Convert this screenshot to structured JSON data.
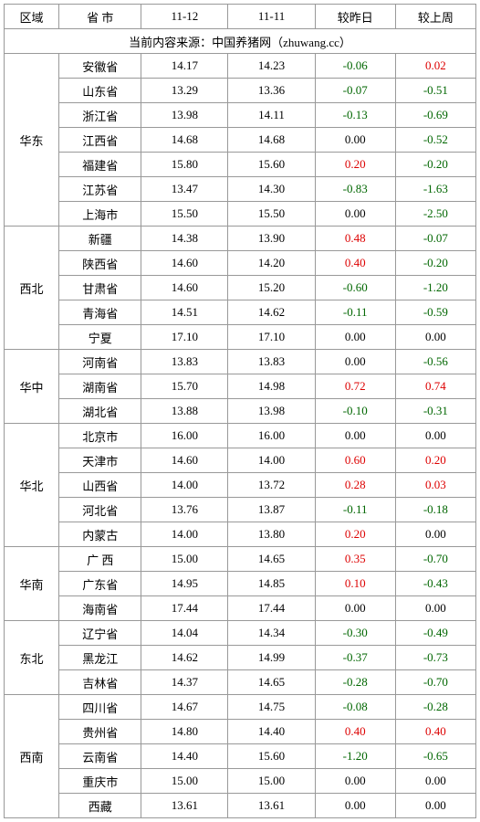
{
  "headers": {
    "region": "区域",
    "province": "省 市",
    "date1": "11-12",
    "date2": "11-11",
    "vs_yesterday": "较昨日",
    "vs_lastweek": "较上周"
  },
  "source_line": "当前内容来源：中国养猪网（zhuwang.cc）",
  "colors": {
    "positive": "#d00",
    "negative": "#006600",
    "border": "#999"
  },
  "regions": [
    {
      "name": "华东",
      "rows": [
        {
          "prov": "安徽省",
          "v1": "14.17",
          "v2": "14.23",
          "d1": "-0.06",
          "d2": "0.02"
        },
        {
          "prov": "山东省",
          "v1": "13.29",
          "v2": "13.36",
          "d1": "-0.07",
          "d2": "-0.51"
        },
        {
          "prov": "浙江省",
          "v1": "13.98",
          "v2": "14.11",
          "d1": "-0.13",
          "d2": "-0.69"
        },
        {
          "prov": "江西省",
          "v1": "14.68",
          "v2": "14.68",
          "d1": "0.00",
          "d2": "-0.52"
        },
        {
          "prov": "福建省",
          "v1": "15.80",
          "v2": "15.60",
          "d1": "0.20",
          "d2": "-0.20"
        },
        {
          "prov": "江苏省",
          "v1": "13.47",
          "v2": "14.30",
          "d1": "-0.83",
          "d2": "-1.63"
        },
        {
          "prov": "上海市",
          "v1": "15.50",
          "v2": "15.50",
          "d1": "0.00",
          "d2": "-2.50"
        }
      ]
    },
    {
      "name": "西北",
      "rows": [
        {
          "prov": "新疆",
          "v1": "14.38",
          "v2": "13.90",
          "d1": "0.48",
          "d2": "-0.07"
        },
        {
          "prov": "陕西省",
          "v1": "14.60",
          "v2": "14.20",
          "d1": "0.40",
          "d2": "-0.20"
        },
        {
          "prov": "甘肃省",
          "v1": "14.60",
          "v2": "15.20",
          "d1": "-0.60",
          "d2": "-1.20"
        },
        {
          "prov": "青海省",
          "v1": "14.51",
          "v2": "14.62",
          "d1": "-0.11",
          "d2": "-0.59"
        },
        {
          "prov": "宁夏",
          "v1": "17.10",
          "v2": "17.10",
          "d1": "0.00",
          "d2": "0.00"
        }
      ]
    },
    {
      "name": "华中",
      "rows": [
        {
          "prov": "河南省",
          "v1": "13.83",
          "v2": "13.83",
          "d1": "0.00",
          "d2": "-0.56"
        },
        {
          "prov": "湖南省",
          "v1": "15.70",
          "v2": "14.98",
          "d1": "0.72",
          "d2": "0.74"
        },
        {
          "prov": "湖北省",
          "v1": "13.88",
          "v2": "13.98",
          "d1": "-0.10",
          "d2": "-0.31"
        }
      ]
    },
    {
      "name": "华北",
      "rows": [
        {
          "prov": "北京市",
          "v1": "16.00",
          "v2": "16.00",
          "d1": "0.00",
          "d2": "0.00"
        },
        {
          "prov": "天津市",
          "v1": "14.60",
          "v2": "14.00",
          "d1": "0.60",
          "d2": "0.20"
        },
        {
          "prov": "山西省",
          "v1": "14.00",
          "v2": "13.72",
          "d1": "0.28",
          "d2": "0.03"
        },
        {
          "prov": "河北省",
          "v1": "13.76",
          "v2": "13.87",
          "d1": "-0.11",
          "d2": "-0.18"
        },
        {
          "prov": "内蒙古",
          "v1": "14.00",
          "v2": "13.80",
          "d1": "0.20",
          "d2": "0.00"
        }
      ]
    },
    {
      "name": "华南",
      "rows": [
        {
          "prov": "广 西",
          "v1": "15.00",
          "v2": "14.65",
          "d1": "0.35",
          "d2": "-0.70"
        },
        {
          "prov": "广东省",
          "v1": "14.95",
          "v2": "14.85",
          "d1": "0.10",
          "d2": "-0.43"
        },
        {
          "prov": "海南省",
          "v1": "17.44",
          "v2": "17.44",
          "d1": "0.00",
          "d2": "0.00"
        }
      ]
    },
    {
      "name": "东北",
      "rows": [
        {
          "prov": "辽宁省",
          "v1": "14.04",
          "v2": "14.34",
          "d1": "-0.30",
          "d2": "-0.49"
        },
        {
          "prov": "黑龙江",
          "v1": "14.62",
          "v2": "14.99",
          "d1": "-0.37",
          "d2": "-0.73"
        },
        {
          "prov": "吉林省",
          "v1": "14.37",
          "v2": "14.65",
          "d1": "-0.28",
          "d2": "-0.70"
        }
      ]
    },
    {
      "name": "西南",
      "rows": [
        {
          "prov": "四川省",
          "v1": "14.67",
          "v2": "14.75",
          "d1": "-0.08",
          "d2": "-0.28"
        },
        {
          "prov": "贵州省",
          "v1": "14.80",
          "v2": "14.40",
          "d1": "0.40",
          "d2": "0.40"
        },
        {
          "prov": "云南省",
          "v1": "14.40",
          "v2": "15.60",
          "d1": "-1.20",
          "d2": "-0.65"
        },
        {
          "prov": "重庆市",
          "v1": "15.00",
          "v2": "15.00",
          "d1": "0.00",
          "d2": "0.00"
        },
        {
          "prov": "西藏",
          "v1": "13.61",
          "v2": "13.61",
          "d1": "0.00",
          "d2": "0.00"
        }
      ]
    }
  ]
}
